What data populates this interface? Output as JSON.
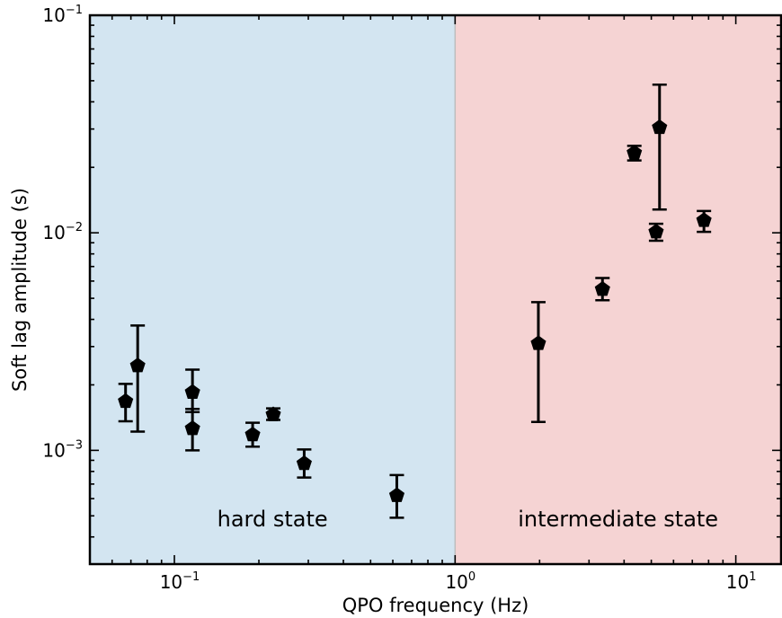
{
  "chart_data": {
    "type": "scatter",
    "title": "",
    "xlabel": "QPO frequency (Hz)",
    "ylabel": "Soft lag amplitude (s)",
    "xscale": "log",
    "yscale": "log",
    "xlim": [
      0.05,
      14.5
    ],
    "ylim": [
      0.0003,
      0.1
    ],
    "grid": false,
    "x_ticks": [
      {
        "value": 0.1,
        "base": "10",
        "exp": "−1"
      },
      {
        "value": 1,
        "base": "10",
        "exp": "0"
      },
      {
        "value": 10,
        "base": "10",
        "exp": "1"
      }
    ],
    "y_ticks": [
      {
        "value": 0.001,
        "base": "10",
        "exp": "−3"
      },
      {
        "value": 0.01,
        "base": "10",
        "exp": "−2"
      },
      {
        "value": 0.1,
        "base": "10",
        "exp": "−1"
      }
    ],
    "regions": [
      {
        "label": "hard state",
        "x_range": [
          0.05,
          1.0
        ],
        "color": "#d3e5f1"
      },
      {
        "label": "intermediate state",
        "x_range": [
          1.0,
          14.5
        ],
        "color": "#f5d3d3"
      }
    ],
    "marker": {
      "shape": "pentagon",
      "color": "#000000"
    },
    "points": [
      {
        "x": 0.067,
        "y": 0.00168,
        "y_low": 0.00136,
        "y_high": 0.00202
      },
      {
        "x": 0.074,
        "y": 0.00245,
        "y_low": 0.00122,
        "y_high": 0.00375
      },
      {
        "x": 0.116,
        "y": 0.00185,
        "y_low": 0.0015,
        "y_high": 0.00235
      },
      {
        "x": 0.116,
        "y": 0.00126,
        "y_low": 0.001,
        "y_high": 0.00155
      },
      {
        "x": 0.19,
        "y": 0.00118,
        "y_low": 0.00104,
        "y_high": 0.00134
      },
      {
        "x": 0.225,
        "y": 0.00146,
        "y_low": 0.00138,
        "y_high": 0.00156
      },
      {
        "x": 0.29,
        "y": 0.00087,
        "y_low": 0.00075,
        "y_high": 0.00101
      },
      {
        "x": 0.62,
        "y": 0.00062,
        "y_low": 0.00049,
        "y_high": 0.00077
      },
      {
        "x": 1.98,
        "y": 0.0031,
        "y_low": 0.00135,
        "y_high": 0.0048
      },
      {
        "x": 3.35,
        "y": 0.0055,
        "y_low": 0.0049,
        "y_high": 0.0062
      },
      {
        "x": 4.35,
        "y": 0.0233,
        "y_low": 0.0215,
        "y_high": 0.0251
      },
      {
        "x": 5.2,
        "y": 0.0101,
        "y_low": 0.0092,
        "y_high": 0.011
      },
      {
        "x": 5.35,
        "y": 0.0305,
        "y_low": 0.0128,
        "y_high": 0.048
      },
      {
        "x": 7.7,
        "y": 0.0114,
        "y_low": 0.0101,
        "y_high": 0.0126
      }
    ]
  }
}
